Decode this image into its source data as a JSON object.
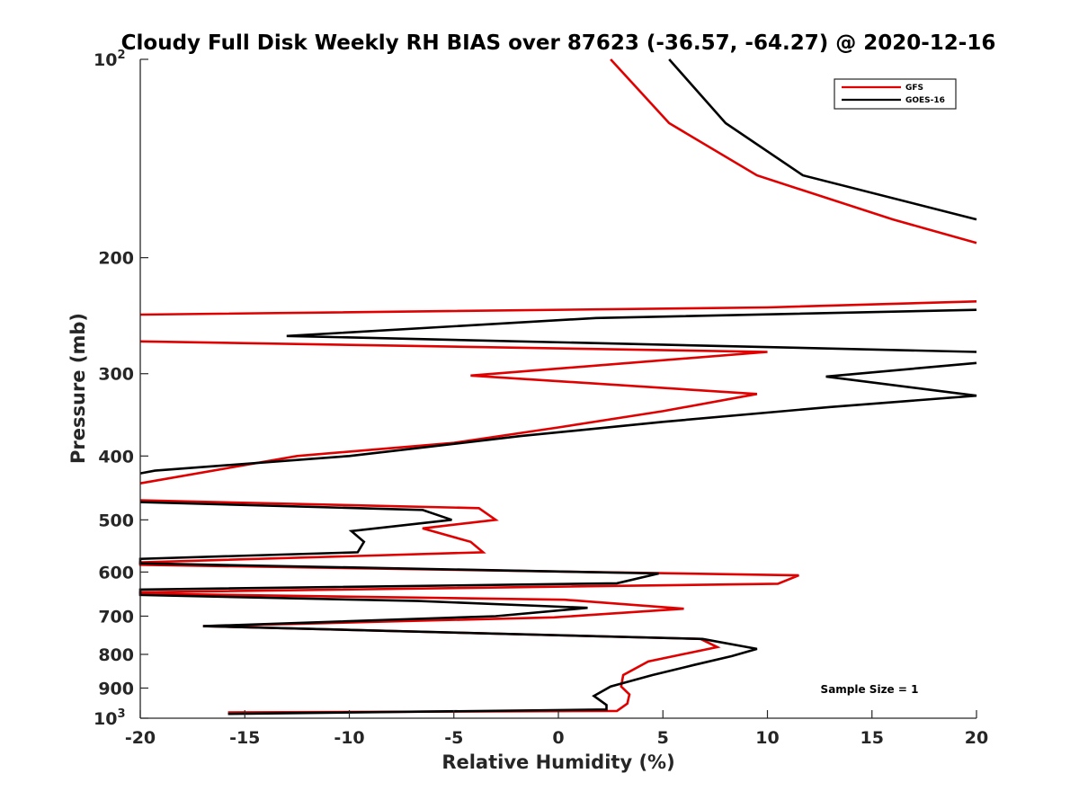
{
  "chart_data": {
    "type": "line",
    "title": "Cloudy Full Disk Weekly RH BIAS over 87623 (-36.57, -64.27) @ 2020-12-16",
    "xlabel": "Relative Humidity (%)",
    "ylabel": "Pressure (mb)",
    "xlim": [
      -20,
      20
    ],
    "ylim": [
      100,
      1000
    ],
    "y_scale": "log",
    "y_reversed": true,
    "grid": false,
    "legend_position": "top-right",
    "x_ticks": [
      "-20",
      "-15",
      "-10",
      "-5",
      "0",
      "5",
      "10",
      "15",
      "20"
    ],
    "x_tick_values": [
      -20,
      -15,
      -10,
      -5,
      0,
      5,
      10,
      15,
      20
    ],
    "y_ticks": [
      {
        "value": 100,
        "base": "10",
        "sup": "2"
      },
      {
        "value": 200,
        "label": "200"
      },
      {
        "value": 300,
        "label": "300"
      },
      {
        "value": 400,
        "label": "400"
      },
      {
        "value": 500,
        "label": "500"
      },
      {
        "value": 600,
        "label": "600"
      },
      {
        "value": 700,
        "label": "700"
      },
      {
        "value": 800,
        "label": "800"
      },
      {
        "value": 900,
        "label": "900"
      },
      {
        "value": 1000,
        "base": "10",
        "sup": "3"
      }
    ],
    "annotation": "Sample Size = 1",
    "series": [
      {
        "name": "GFS",
        "color": "#e00000",
        "points": [
          [
            2.5,
            100
          ],
          [
            5.3,
            125
          ],
          [
            9.5,
            150
          ],
          [
            16.0,
            175
          ],
          [
            20,
            190
          ],
          [
            null,
            null
          ],
          [
            20,
            233
          ],
          [
            10.0,
            238
          ],
          [
            -20,
            244
          ],
          [
            null,
            null
          ],
          [
            -20,
            268
          ],
          [
            10.0,
            278
          ],
          [
            -4.2,
            302
          ],
          [
            9.5,
            322
          ],
          [
            5.0,
            342
          ],
          [
            0,
            362
          ],
          [
            -5.0,
            382
          ],
          [
            -12.5,
            400
          ],
          [
            -20,
            440
          ],
          [
            null,
            null
          ],
          [
            -20,
            467
          ],
          [
            -3.8,
            480
          ],
          [
            -3.0,
            500
          ],
          [
            -6.5,
            515
          ],
          [
            -4.2,
            540
          ],
          [
            -3.6,
            560
          ],
          [
            -20,
            580
          ],
          [
            -20,
            585
          ],
          [
            11.5,
            607
          ],
          [
            10.5,
            625
          ],
          [
            -20,
            644
          ],
          [
            -20,
            647
          ],
          [
            0.3,
            661
          ],
          [
            6.0,
            682
          ],
          [
            -0.2,
            703
          ],
          [
            -17,
            725
          ],
          [
            6.8,
            758
          ],
          [
            7.6,
            780
          ],
          [
            4.3,
            820
          ],
          [
            3.1,
            860
          ],
          [
            3.0,
            895
          ],
          [
            3.4,
            920
          ],
          [
            3.3,
            950
          ],
          [
            2.8,
            975
          ],
          [
            -15.8,
            980
          ]
        ]
      },
      {
        "name": "GOES-16",
        "color": "#000000",
        "points": [
          [
            5.3,
            100
          ],
          [
            8.0,
            125
          ],
          [
            11.7,
            150
          ],
          [
            20,
            175
          ],
          [
            null,
            null
          ],
          [
            20,
            240
          ],
          [
            1.8,
            247
          ],
          [
            -13.0,
            263
          ],
          [
            20,
            278
          ],
          [
            null,
            null
          ],
          [
            20,
            289
          ],
          [
            12.8,
            303
          ],
          [
            20,
            324
          ],
          [
            13.0,
            337
          ],
          [
            5.0,
            355
          ],
          [
            -1.8,
            373
          ],
          [
            -10.0,
            400
          ],
          [
            -19.3,
            421
          ],
          [
            -20,
            425
          ],
          [
            null,
            null
          ],
          [
            -20,
            470
          ],
          [
            -6.5,
            483
          ],
          [
            -5.1,
            500
          ],
          [
            -9.9,
            520
          ],
          [
            -9.3,
            540
          ],
          [
            -9.6,
            560
          ],
          [
            -20,
            573
          ],
          [
            -20,
            582
          ],
          [
            4.8,
            603
          ],
          [
            2.8,
            624
          ],
          [
            -20,
            638
          ],
          [
            -20,
            650
          ],
          [
            -6.7,
            664
          ],
          [
            1.4,
            680
          ],
          [
            -3.0,
            700
          ],
          [
            -17,
            725
          ],
          [
            6.9,
            758
          ],
          [
            9.5,
            785
          ],
          [
            8.3,
            805
          ],
          [
            6.5,
            830
          ],
          [
            4.5,
            860
          ],
          [
            2.5,
            895
          ],
          [
            1.7,
            925
          ],
          [
            2.3,
            955
          ],
          [
            2.3,
            970
          ],
          [
            -15.8,
            985
          ]
        ]
      }
    ]
  }
}
